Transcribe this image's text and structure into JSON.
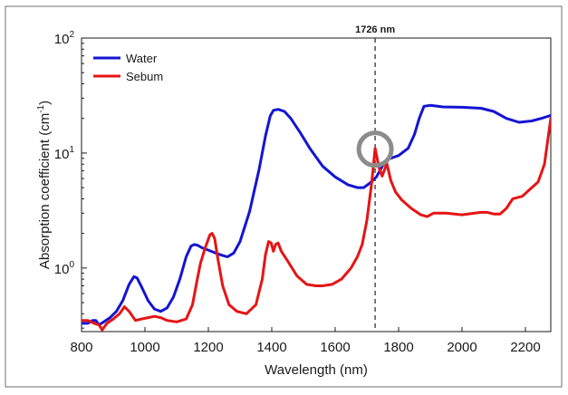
{
  "chart_data": {
    "type": "line",
    "title": "",
    "xlabel": "Wavelength (nm)",
    "ylabel": "Absorption coefficient (cm",
    "ylabel_sup": "-1",
    "ylabel_close": ")",
    "xlim": [
      800,
      2280
    ],
    "ylim": [
      0.28,
      100
    ],
    "yscale": "log",
    "grid": false,
    "legend_position": "top-left",
    "x_ticks": [
      800,
      1000,
      1200,
      1400,
      1600,
      1800,
      2000,
      2200
    ],
    "x_tick_labels": [
      "800",
      "1000",
      "1200",
      "1400",
      "1600",
      "1800",
      "2000",
      "2200"
    ],
    "y_ticks": [
      1,
      10,
      100
    ],
    "y_tick_labels": [
      {
        "base": "10",
        "exp": "0"
      },
      {
        "base": "10",
        "exp": "1"
      },
      {
        "base": "10",
        "exp": "2"
      }
    ],
    "annotation": {
      "label": "1726 nm",
      "x": 1726,
      "marker_y": 10.8,
      "marker_color": "#8c8c8c"
    },
    "series": [
      {
        "name": "Water",
        "color": "#1414d2",
        "x": [
          800,
          820,
          835,
          845,
          855,
          870,
          890,
          910,
          930,
          950,
          965,
          975,
          990,
          1010,
          1030,
          1050,
          1070,
          1090,
          1110,
          1130,
          1145,
          1155,
          1165,
          1180,
          1200,
          1220,
          1240,
          1260,
          1280,
          1300,
          1330,
          1360,
          1380,
          1395,
          1405,
          1420,
          1440,
          1460,
          1490,
          1520,
          1560,
          1600,
          1640,
          1670,
          1690,
          1710,
          1730,
          1750,
          1770,
          1800,
          1830,
          1850,
          1865,
          1880,
          1900,
          1940,
          2000,
          2060,
          2100,
          2140,
          2180,
          2220,
          2250,
          2270,
          2280
        ],
        "values": [
          0.33,
          0.33,
          0.35,
          0.35,
          0.32,
          0.34,
          0.37,
          0.42,
          0.52,
          0.72,
          0.84,
          0.82,
          0.68,
          0.52,
          0.44,
          0.42,
          0.45,
          0.56,
          0.8,
          1.25,
          1.55,
          1.6,
          1.58,
          1.5,
          1.43,
          1.36,
          1.3,
          1.25,
          1.35,
          1.7,
          3.1,
          7.2,
          14.0,
          21.0,
          23.5,
          24.0,
          23.0,
          20.0,
          15.0,
          11.0,
          7.7,
          6.2,
          5.3,
          5.0,
          5.0,
          5.5,
          6.2,
          7.8,
          8.9,
          9.5,
          11.0,
          14.5,
          20.0,
          25.5,
          26.0,
          25.2,
          25.0,
          24.5,
          23.0,
          20.0,
          18.5,
          19.0,
          20.0,
          20.8,
          21.2
        ]
      },
      {
        "name": "Sebum",
        "color": "#e61414",
        "x": [
          800,
          820,
          840,
          855,
          865,
          880,
          900,
          920,
          935,
          950,
          970,
          990,
          1010,
          1030,
          1050,
          1070,
          1100,
          1130,
          1150,
          1165,
          1175,
          1190,
          1205,
          1212,
          1220,
          1230,
          1245,
          1265,
          1290,
          1320,
          1350,
          1370,
          1380,
          1390,
          1398,
          1405,
          1412,
          1420,
          1430,
          1450,
          1480,
          1510,
          1540,
          1560,
          1590,
          1620,
          1650,
          1670,
          1685,
          1700,
          1715,
          1726,
          1738,
          1748,
          1755,
          1763,
          1775,
          1790,
          1810,
          1840,
          1870,
          1890,
          1910,
          1950,
          2000,
          2040,
          2060,
          2080,
          2100,
          2120,
          2140,
          2160,
          2190,
          2220,
          2240,
          2260,
          2280
        ],
        "values": [
          0.35,
          0.35,
          0.33,
          0.32,
          0.29,
          0.33,
          0.36,
          0.4,
          0.46,
          0.42,
          0.35,
          0.36,
          0.37,
          0.38,
          0.37,
          0.35,
          0.34,
          0.36,
          0.48,
          0.8,
          1.1,
          1.5,
          1.95,
          2.0,
          1.8,
          1.2,
          0.7,
          0.48,
          0.42,
          0.4,
          0.48,
          0.8,
          1.3,
          1.7,
          1.65,
          1.4,
          1.6,
          1.65,
          1.4,
          1.15,
          0.85,
          0.72,
          0.7,
          0.7,
          0.72,
          0.8,
          1.0,
          1.25,
          1.6,
          2.6,
          5.5,
          11.0,
          7.5,
          6.3,
          7.1,
          8.1,
          5.8,
          4.6,
          3.9,
          3.3,
          2.9,
          2.8,
          3.0,
          3.0,
          2.9,
          3.0,
          3.05,
          3.05,
          2.95,
          2.95,
          3.3,
          4.0,
          4.2,
          5.0,
          5.6,
          8.0,
          20.0
        ]
      }
    ]
  }
}
